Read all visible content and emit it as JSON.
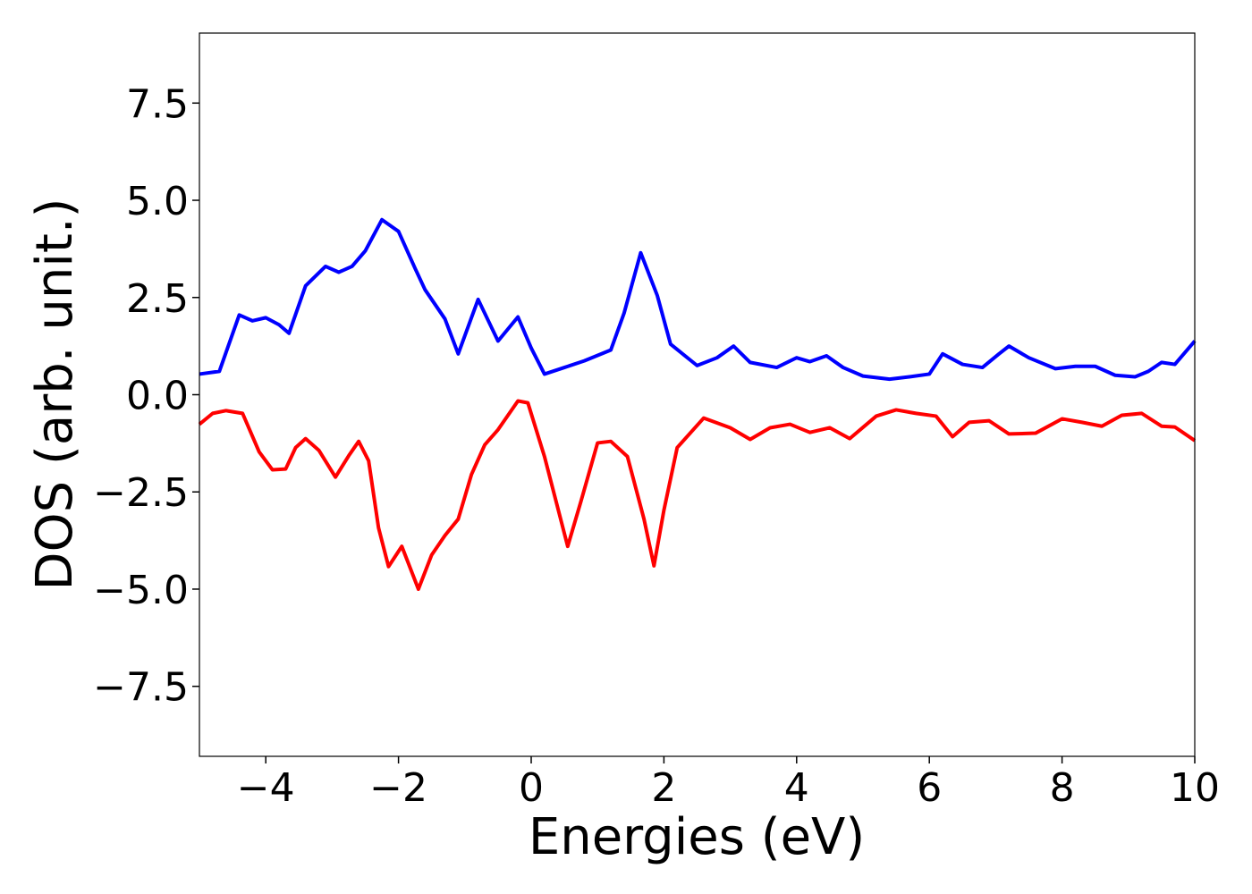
{
  "chart_data": {
    "type": "line",
    "xlabel": "Energies (eV)",
    "ylabel": "DOS (arb. unit.)",
    "xlim": [
      -5,
      10
    ],
    "ylim": [
      -9.3,
      9.3
    ],
    "xticks": [
      {
        "value": -4,
        "label": "−4"
      },
      {
        "value": -2,
        "label": "−2"
      },
      0,
      2,
      4,
      6,
      8,
      10
    ],
    "yticks": [
      {
        "value": -7.5,
        "label": "−7.5"
      },
      {
        "value": -5,
        "label": "−5.0"
      },
      {
        "value": -2.5,
        "label": "−2.5"
      },
      {
        "value": 0,
        "label": "0.0"
      },
      {
        "value": 2.5,
        "label": "2.5"
      },
      {
        "value": 5,
        "label": "5.0"
      },
      {
        "value": 7.5,
        "label": "7.5"
      }
    ],
    "series": [
      {
        "color": "#0000ff",
        "x": [
          -5,
          -4.7,
          -4.4,
          -4.2,
          -4,
          -3.8,
          -3.65,
          -3.4,
          -3.1,
          -2.9,
          -2.7,
          -2.5,
          -2.25,
          -2,
          -1.75,
          -1.6,
          -1.3,
          -1.1,
          -0.8,
          -0.5,
          -0.2,
          0,
          0.2,
          0.5,
          0.8,
          1.2,
          1.4,
          1.65,
          1.9,
          2.1,
          2.5,
          2.8,
          3.05,
          3.3,
          3.7,
          4,
          4.2,
          4.45,
          4.7,
          5,
          5.4,
          5.7,
          6,
          6.2,
          6.5,
          6.8,
          7.05,
          7.2,
          7.5,
          7.9,
          8.2,
          8.5,
          8.8,
          9.1,
          9.3,
          9.5,
          9.7,
          10
        ],
        "values": [
          0.53,
          0.6,
          2.05,
          1.9,
          1.98,
          1.8,
          1.58,
          2.8,
          3.3,
          3.15,
          3.3,
          3.7,
          4.5,
          4.2,
          3.25,
          2.7,
          1.95,
          1.05,
          2.45,
          1.38,
          2.0,
          1.2,
          0.53,
          0.7,
          0.87,
          1.15,
          2.1,
          3.65,
          2.55,
          1.3,
          0.75,
          0.95,
          1.25,
          0.83,
          0.7,
          0.95,
          0.85,
          1.0,
          0.7,
          0.48,
          0.4,
          0.46,
          0.53,
          1.05,
          0.78,
          0.7,
          1.05,
          1.25,
          0.95,
          0.67,
          0.73,
          0.73,
          0.5,
          0.46,
          0.6,
          0.83,
          0.78,
          1.38
        ]
      },
      {
        "color": "#ff0000",
        "x": [
          -5,
          -4.8,
          -4.6,
          -4.35,
          -4.1,
          -3.9,
          -3.7,
          -3.55,
          -3.4,
          -3.2,
          -2.95,
          -2.75,
          -2.6,
          -2.45,
          -2.3,
          -2.15,
          -1.95,
          -1.7,
          -1.5,
          -1.3,
          -1.1,
          -0.9,
          -0.7,
          -0.5,
          -0.2,
          -0.05,
          0.2,
          0.55,
          0.75,
          1,
          1.2,
          1.45,
          1.7,
          1.85,
          2,
          2.2,
          2.6,
          3,
          3.3,
          3.6,
          3.9,
          4.2,
          4.5,
          4.8,
          5.2,
          5.5,
          5.8,
          6.1,
          6.35,
          6.6,
          6.9,
          7.2,
          7.6,
          8,
          8.3,
          8.6,
          8.9,
          9.2,
          9.5,
          9.7,
          10
        ],
        "values": [
          -0.76,
          -0.48,
          -0.41,
          -0.48,
          -1.47,
          -1.93,
          -1.91,
          -1.36,
          -1.13,
          -1.43,
          -2.12,
          -1.57,
          -1.2,
          -1.7,
          -3.43,
          -4.42,
          -3.9,
          -5.0,
          -4.12,
          -3.62,
          -3.2,
          -2.05,
          -1.29,
          -0.9,
          -0.16,
          -0.21,
          -1.59,
          -3.9,
          -2.74,
          -1.24,
          -1.2,
          -1.59,
          -3.2,
          -4.4,
          -2.97,
          -1.36,
          -0.6,
          -0.85,
          -1.15,
          -0.85,
          -0.76,
          -0.97,
          -0.85,
          -1.13,
          -0.55,
          -0.39,
          -0.48,
          -0.55,
          -1.08,
          -0.71,
          -0.67,
          -1.01,
          -0.99,
          -0.62,
          -0.71,
          -0.81,
          -0.53,
          -0.48,
          -0.81,
          -0.83,
          -1.18
        ]
      }
    ]
  }
}
